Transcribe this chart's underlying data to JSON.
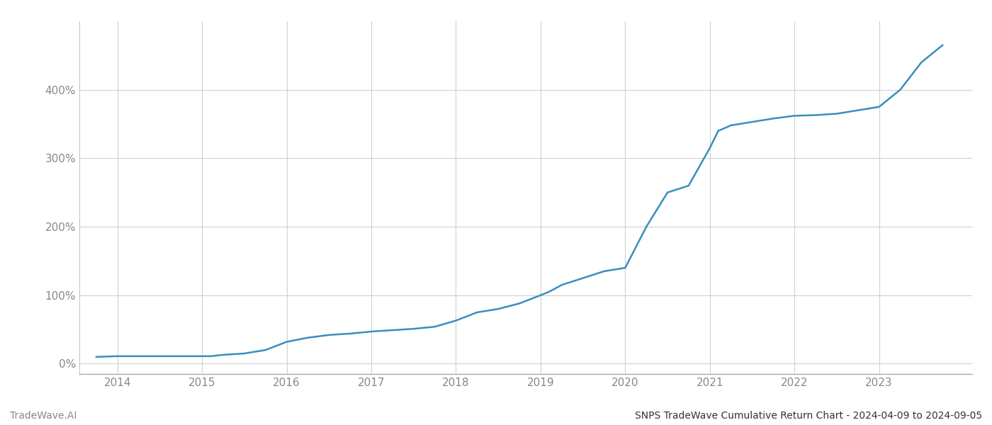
{
  "title": "SNPS TradeWave Cumulative Return Chart - 2024-04-09 to 2024-09-05",
  "watermark": "TradeWave.AI",
  "line_color": "#3a8ebf",
  "background_color": "#ffffff",
  "grid_color": "#d0d0d0",
  "x_years": [
    2014,
    2015,
    2016,
    2017,
    2018,
    2019,
    2020,
    2021,
    2022,
    2023
  ],
  "x_data": [
    2013.75,
    2014.0,
    2014.25,
    2014.5,
    2014.75,
    2015.0,
    2015.1,
    2015.25,
    2015.5,
    2015.75,
    2016.0,
    2016.25,
    2016.5,
    2016.75,
    2017.0,
    2017.25,
    2017.5,
    2017.75,
    2018.0,
    2018.25,
    2018.5,
    2018.75,
    2019.0,
    2019.1,
    2019.25,
    2019.5,
    2019.75,
    2020.0,
    2020.25,
    2020.5,
    2020.75,
    2021.0,
    2021.1,
    2021.25,
    2021.5,
    2021.75,
    2022.0,
    2022.25,
    2022.5,
    2022.75,
    2023.0,
    2023.25,
    2023.5,
    2023.75
  ],
  "y_data": [
    10,
    11,
    11,
    11,
    11,
    11,
    11,
    13,
    15,
    20,
    32,
    38,
    42,
    44,
    47,
    49,
    51,
    54,
    63,
    75,
    80,
    88,
    100,
    105,
    115,
    125,
    135,
    140,
    200,
    250,
    260,
    315,
    340,
    348,
    353,
    358,
    362,
    363,
    365,
    370,
    375,
    400,
    440,
    465
  ],
  "ylim": [
    -15,
    500
  ],
  "xlim": [
    2013.55,
    2024.1
  ],
  "yticks": [
    0,
    100,
    200,
    300,
    400
  ],
  "ytick_labels": [
    "0%",
    "100%",
    "200%",
    "300%",
    "400%"
  ],
  "title_fontsize": 10,
  "tick_fontsize": 11,
  "watermark_fontsize": 10,
  "axis_color": "#aaaaaa",
  "tick_color": "#888888",
  "line_width": 1.8
}
